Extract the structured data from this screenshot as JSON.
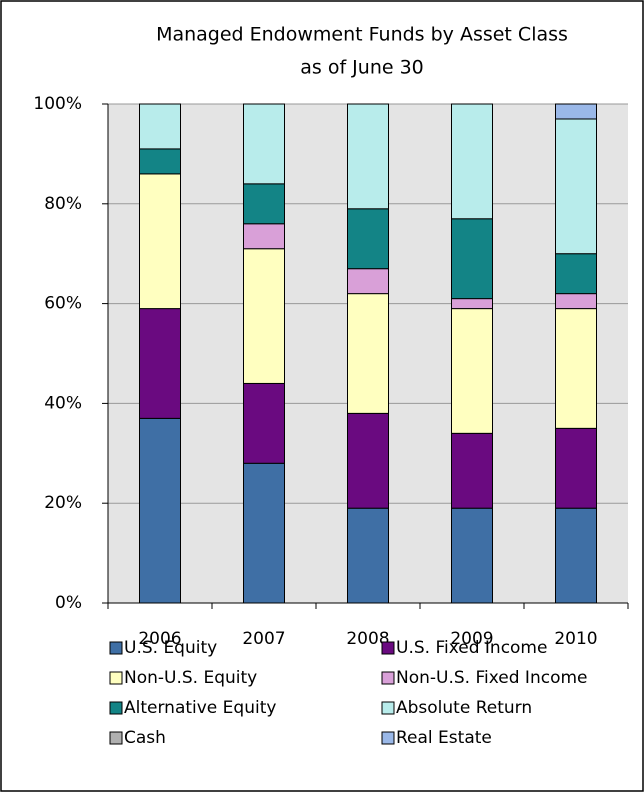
{
  "chart_data": {
    "type": "stacked_bar",
    "title": "Managed Endowment Funds by Asset Class",
    "subtitle": "as of June 30",
    "categories": [
      "2006",
      "2007",
      "2008",
      "2009",
      "2010"
    ],
    "series": [
      {
        "name": "U.S. Equity",
        "color": "#3f6fa5",
        "values": [
          37,
          28,
          19,
          19,
          19
        ]
      },
      {
        "name": "U.S. Fixed Income",
        "color": "#6a0a80",
        "values": [
          22,
          16,
          19,
          15,
          16
        ]
      },
      {
        "name": "Non-U.S. Equity",
        "color": "#ffffc0",
        "values": [
          27,
          27,
          24,
          25,
          24
        ]
      },
      {
        "name": "Non-U.S. Fixed Income",
        "color": "#d9a0d8",
        "values": [
          0,
          5,
          5,
          2,
          3
        ]
      },
      {
        "name": "Alternative Equity",
        "color": "#138486",
        "values": [
          5,
          8,
          12,
          16,
          8
        ]
      },
      {
        "name": "Absolute Return",
        "color": "#b8eceb",
        "values": [
          9,
          16,
          21,
          23,
          27
        ]
      },
      {
        "name": "Cash",
        "color": "#b0b0b0",
        "values": [
          0,
          0,
          0,
          0,
          0
        ]
      },
      {
        "name": "Real Estate",
        "color": "#9ab8e8",
        "values": [
          0,
          0,
          0,
          0,
          3
        ]
      }
    ],
    "ylim": [
      0,
      100
    ],
    "yticks": [
      {
        "value": 0,
        "label": "0%"
      },
      {
        "value": 20,
        "label": "20%"
      },
      {
        "value": 40,
        "label": "40%"
      },
      {
        "value": 60,
        "label": "60%"
      },
      {
        "value": 80,
        "label": "80%"
      },
      {
        "value": 100,
        "label": "100%"
      }
    ],
    "grid": true
  }
}
